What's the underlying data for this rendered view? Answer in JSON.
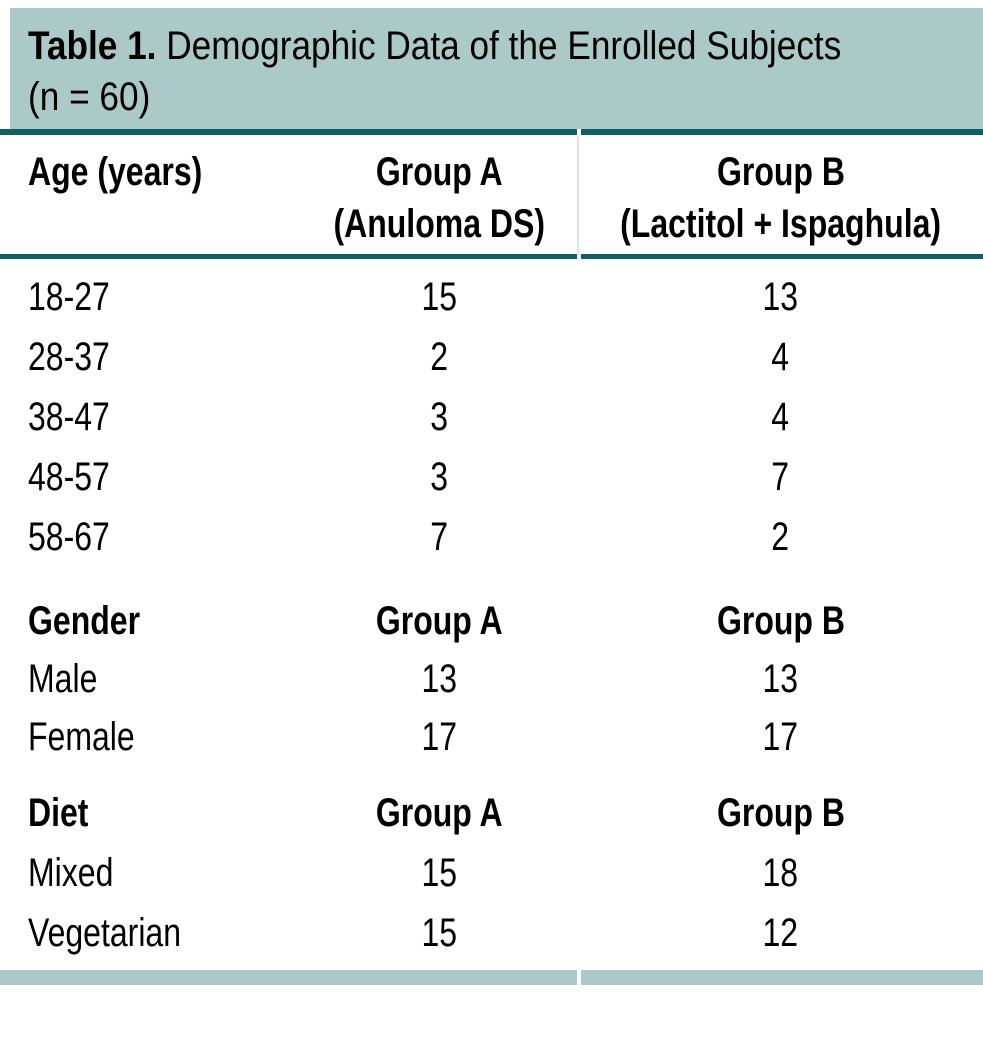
{
  "title": {
    "label": "Table 1.",
    "line1_rest": "Demographic Data of the Enrolled Subjects",
    "line2": "(n = 60)"
  },
  "columns": {
    "age": {
      "col1": "Age (years)",
      "col2_line1": "Group A",
      "col2_line2": "(Anuloma DS)",
      "col3_line1": "Group B",
      "col3_line2": "(Lactitol + Ispaghula)"
    }
  },
  "age_rows": [
    {
      "label": "18-27",
      "group_a": "15",
      "group_b": "13"
    },
    {
      "label": "28-37",
      "group_a": "2",
      "group_b": "4"
    },
    {
      "label": "38-47",
      "group_a": "3",
      "group_b": "4"
    },
    {
      "label": "48-57",
      "group_a": "3",
      "group_b": "7"
    },
    {
      "label": "58-67",
      "group_a": "7",
      "group_b": "2"
    }
  ],
  "gender": {
    "header": {
      "col1": "Gender",
      "col2": "Group A",
      "col3": "Group B"
    },
    "rows": [
      {
        "label": "Male",
        "group_a": "13",
        "group_b": "13"
      },
      {
        "label": "Female",
        "group_a": "17",
        "group_b": "17"
      }
    ]
  },
  "diet": {
    "header": {
      "col1": "Diet",
      "col2": "Group A",
      "col3": "Group B"
    },
    "rows": [
      {
        "label": "Mixed",
        "group_a": "15",
        "group_b": "18"
      },
      {
        "label": "Vegetarian",
        "group_a": "15",
        "group_b": "12"
      }
    ]
  },
  "colors": {
    "header_bg": "#abcac7",
    "rule": "#115f66",
    "text": "#000000"
  },
  "chart_data": {
    "type": "table",
    "title": "Table 1. Demographic Data of the Enrolled Subjects (n = 60)",
    "sections": [
      {
        "name": "Age (years)",
        "columns": [
          "Age (years)",
          "Group A (Anuloma DS)",
          "Group B (Lactitol + Ispaghula)"
        ],
        "rows": [
          [
            "18-27",
            15,
            13
          ],
          [
            "28-37",
            2,
            4
          ],
          [
            "38-47",
            3,
            4
          ],
          [
            "48-57",
            3,
            7
          ],
          [
            "58-67",
            7,
            2
          ]
        ]
      },
      {
        "name": "Gender",
        "columns": [
          "Gender",
          "Group A",
          "Group B"
        ],
        "rows": [
          [
            "Male",
            13,
            13
          ],
          [
            "Female",
            17,
            17
          ]
        ]
      },
      {
        "name": "Diet",
        "columns": [
          "Diet",
          "Group A",
          "Group B"
        ],
        "rows": [
          [
            "Mixed",
            15,
            18
          ],
          [
            "Vegetarian",
            15,
            12
          ]
        ]
      }
    ]
  }
}
